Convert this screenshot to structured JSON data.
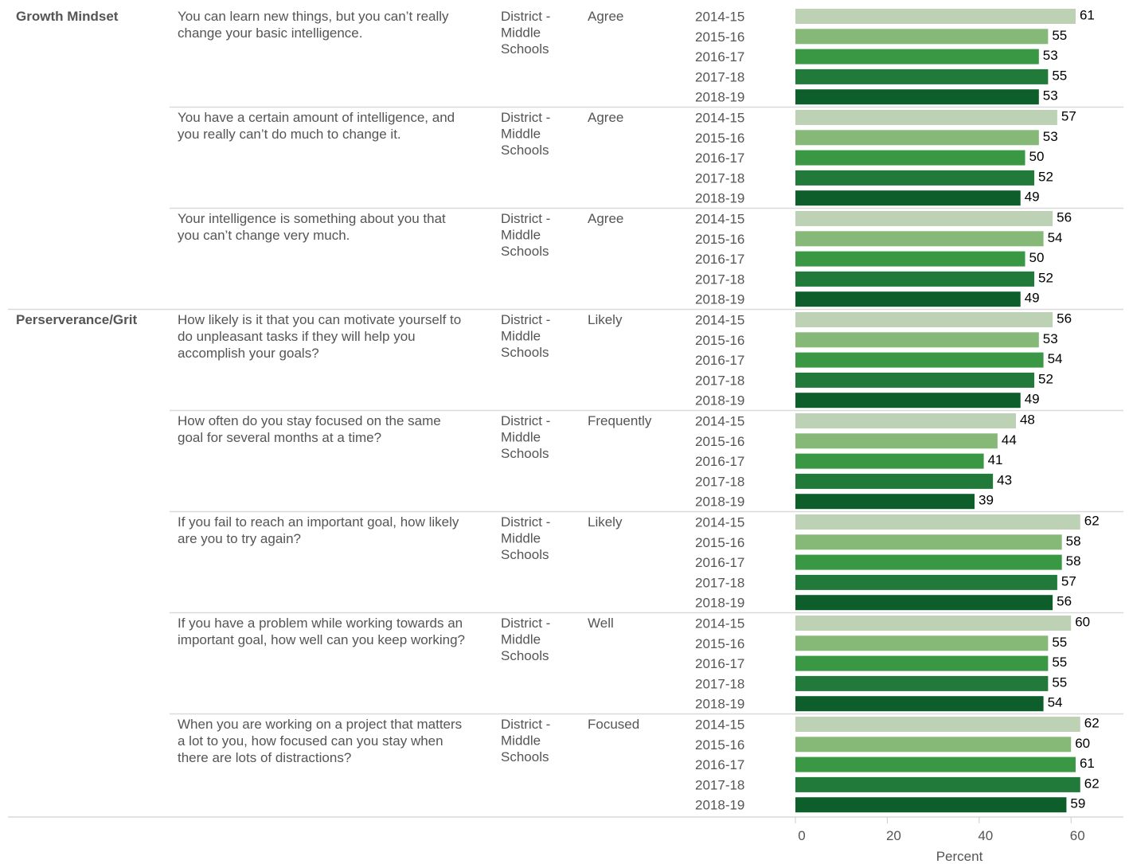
{
  "chart_data": {
    "type": "bar",
    "orientation": "horizontal",
    "xlabel": "Percent",
    "xlim": [
      0,
      70
    ],
    "xticks": [
      "0",
      "20",
      "40",
      "60"
    ],
    "years": [
      "2014-15",
      "2015-16",
      "2016-17",
      "2017-18",
      "2018-19"
    ],
    "colors": [
      "#bdd1b5",
      "#86b878",
      "#3a9844",
      "#217a3a",
      "#0d5e2a"
    ],
    "groups": [
      {
        "category": "Growth Mindset",
        "questions": [
          {
            "text": [
              "You can learn new things, but you can’t really",
              "change your basic intelligence."
            ],
            "group": [
              "District -",
              "Middle",
              "Schools"
            ],
            "response": "Agree",
            "values": [
              61,
              55,
              53,
              55,
              53
            ]
          },
          {
            "text": [
              "You have a certain amount of intelligence, and",
              "you really can’t do much to change it."
            ],
            "group": [
              "District -",
              "Middle",
              "Schools"
            ],
            "response": "Agree",
            "values": [
              57,
              53,
              50,
              52,
              49
            ]
          },
          {
            "text": [
              "Your intelligence is something about you that",
              "you can’t change very much."
            ],
            "group": [
              "District -",
              "Middle",
              "Schools"
            ],
            "response": "Agree",
            "values": [
              56,
              54,
              50,
              52,
              49
            ]
          }
        ]
      },
      {
        "category": "Perserverance/Grit",
        "questions": [
          {
            "text": [
              "How likely is it that you can motivate yourself to",
              "do unpleasant tasks if they will help you",
              "accomplish your goals?"
            ],
            "group": [
              "District -",
              "Middle",
              "Schools"
            ],
            "response": "Likely",
            "values": [
              56,
              53,
              54,
              52,
              49
            ]
          },
          {
            "text": [
              "How often do you stay focused on the same",
              "goal for several months at a time?"
            ],
            "group": [
              "District -",
              "Middle",
              "Schools"
            ],
            "response": "Frequently",
            "values": [
              48,
              44,
              41,
              43,
              39
            ]
          },
          {
            "text": [
              "If you fail to reach an important goal, how likely",
              "are you to try again?"
            ],
            "group": [
              "District -",
              "Middle",
              "Schools"
            ],
            "response": "Likely",
            "values": [
              62,
              58,
              58,
              57,
              56
            ]
          },
          {
            "text": [
              "If you have a problem while working towards an",
              "important goal, how well can you keep working?"
            ],
            "group": [
              "District -",
              "Middle",
              "Schools"
            ],
            "response": "Well",
            "values": [
              60,
              55,
              55,
              55,
              54
            ]
          },
          {
            "text": [
              "When you are working on a project that matters",
              "a lot to you, how focused can you stay when",
              "there are lots of distractions?"
            ],
            "group": [
              "District -",
              "Middle",
              "Schools"
            ],
            "response": "Focused",
            "values": [
              62,
              60,
              61,
              62,
              59
            ]
          }
        ]
      }
    ]
  }
}
